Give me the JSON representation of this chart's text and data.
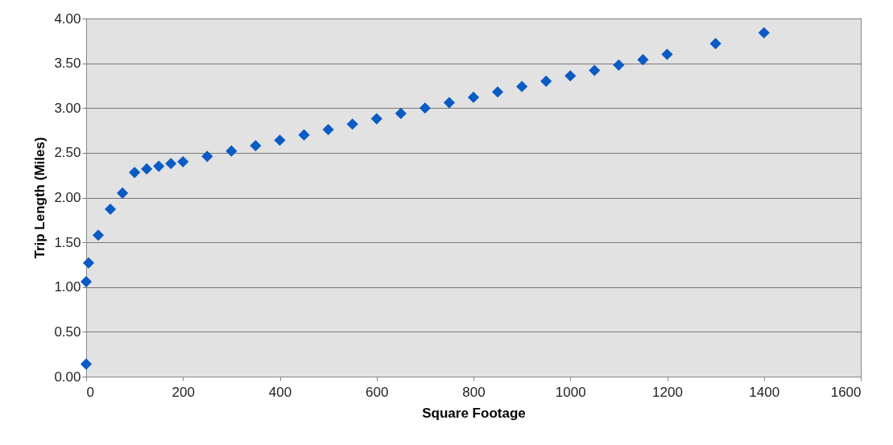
{
  "chart_data": {
    "type": "scatter",
    "xlabel": "Square Footage",
    "ylabel": "Trip Length (Miles)",
    "x": [
      0,
      0,
      5,
      25,
      50,
      75,
      100,
      125,
      150,
      175,
      200,
      250,
      300,
      350,
      400,
      450,
      500,
      550,
      600,
      650,
      700,
      750,
      800,
      850,
      900,
      950,
      1000,
      1050,
      1100,
      1150,
      1200,
      1300,
      1400
    ],
    "series": [
      {
        "color": "#0a5bc4",
        "values": [
          0.14,
          1.06,
          1.27,
          1.58,
          1.87,
          2.05,
          2.28,
          2.32,
          2.35,
          2.38,
          2.4,
          2.46,
          2.52,
          2.58,
          2.64,
          2.7,
          2.76,
          2.82,
          2.88,
          2.94,
          3.0,
          3.06,
          3.12,
          3.18,
          3.24,
          3.3,
          3.36,
          3.42,
          3.48,
          3.54,
          3.6,
          3.72,
          3.84
        ]
      }
    ],
    "xlim": [
      0,
      1600
    ],
    "xticks": [
      0,
      200,
      400,
      600,
      800,
      1000,
      1200,
      1400,
      1600
    ],
    "ylim": [
      0,
      4
    ],
    "yticks": [
      {
        "value": 0,
        "label": "0.00"
      },
      {
        "value": 0.5,
        "label": "0.50"
      },
      {
        "value": 1,
        "label": "1.00"
      },
      {
        "value": 1.5,
        "label": "1.50"
      },
      {
        "value": 2,
        "label": "2.00"
      },
      {
        "value": 2.5,
        "label": "2.50"
      },
      {
        "value": 3,
        "label": "3.00"
      },
      {
        "value": 3.5,
        "label": "3.50"
      },
      {
        "value": 4,
        "label": "4.00"
      }
    ],
    "grid": "y",
    "marker": "diamond"
  }
}
